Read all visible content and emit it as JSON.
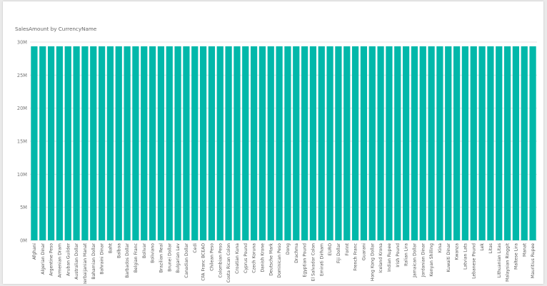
{
  "visual": {
    "title": "SalesAmount by CurrencyName"
  },
  "colors": {
    "bar": "#01B8AA",
    "gridline": "#e4e4e4",
    "tick_text": "#777777",
    "category_text": "#555555",
    "background": "#ffffff"
  },
  "chart_data": {
    "type": "bar",
    "title": "SalesAmount by CurrencyName",
    "xlabel": "",
    "ylabel": "",
    "ylim": [
      0,
      30000000
    ],
    "y_ticks": [
      0,
      5000000,
      10000000,
      15000000,
      20000000,
      25000000,
      30000000
    ],
    "y_tick_labels": [
      "0M",
      "5M",
      "10M",
      "15M",
      "20M",
      "25M",
      "30M"
    ],
    "grid": true,
    "legend": "none",
    "categories": [
      "Afghani",
      "Algerian Dinar",
      "Argentine Peso",
      "Armenian Dram",
      "Aruban Guilder",
      "Australian Dollar",
      "Azerbaijanian Manat",
      "Bahamian Dollar",
      "Bahraini Dinar",
      "Baht",
      "Balboa",
      "Barbados Dollar",
      "Belgian Franc",
      "Bolivar",
      "Boliviano",
      "Brazilian Real",
      "Brunei Dollar",
      "Bulgarian Lev",
      "Canadian Dollar",
      "Cedi",
      "CFA Franc BCEAO",
      "Chilean Peso",
      "Colombian Peso",
      "Costa Rican Colon",
      "Croatian Kuna",
      "Cyprus Pound",
      "Czech Koruna",
      "Danish Krone",
      "Deutsche Mark",
      "Dominican Peso",
      "Dong",
      "Drachma",
      "Egyptian Pound",
      "El Salvador Colon",
      "Emirati Dirham",
      "EURO",
      "Fiji Dollar",
      "Forint",
      "French Franc",
      "Guarani",
      "Hong Kong Dollar",
      "Iceland Krona",
      "Indian Rupee",
      "Irish Pound",
      "Italian Lira",
      "Jamaican Dollar",
      "Jordanian Dinar",
      "Kenyan Shilling",
      "Kina",
      "Kuwaiti Dinar",
      "Kwanza",
      "Latvian Lats",
      "Lebanese Pound",
      "Lek",
      "Litas",
      "Lithuanian Litas",
      "Malaysian Ringgit",
      "Maltese Lira",
      "Manat",
      "Mauritius Rupee"
    ],
    "values": [
      29360000,
      29360000,
      29360000,
      29360000,
      29360000,
      29360000,
      29360000,
      29360000,
      29360000,
      29360000,
      29360000,
      29360000,
      29360000,
      29360000,
      29360000,
      29360000,
      29360000,
      29360000,
      29360000,
      29360000,
      29360000,
      29360000,
      29360000,
      29360000,
      29360000,
      29360000,
      29360000,
      29360000,
      29360000,
      29360000,
      29360000,
      29360000,
      29360000,
      29360000,
      29360000,
      29360000,
      29360000,
      29360000,
      29360000,
      29360000,
      29360000,
      29360000,
      29360000,
      29360000,
      29360000,
      29360000,
      29360000,
      29360000,
      29360000,
      29360000,
      29360000,
      29360000,
      29360000,
      29360000,
      29360000,
      29360000,
      29360000,
      29360000,
      29360000,
      29360000
    ]
  }
}
